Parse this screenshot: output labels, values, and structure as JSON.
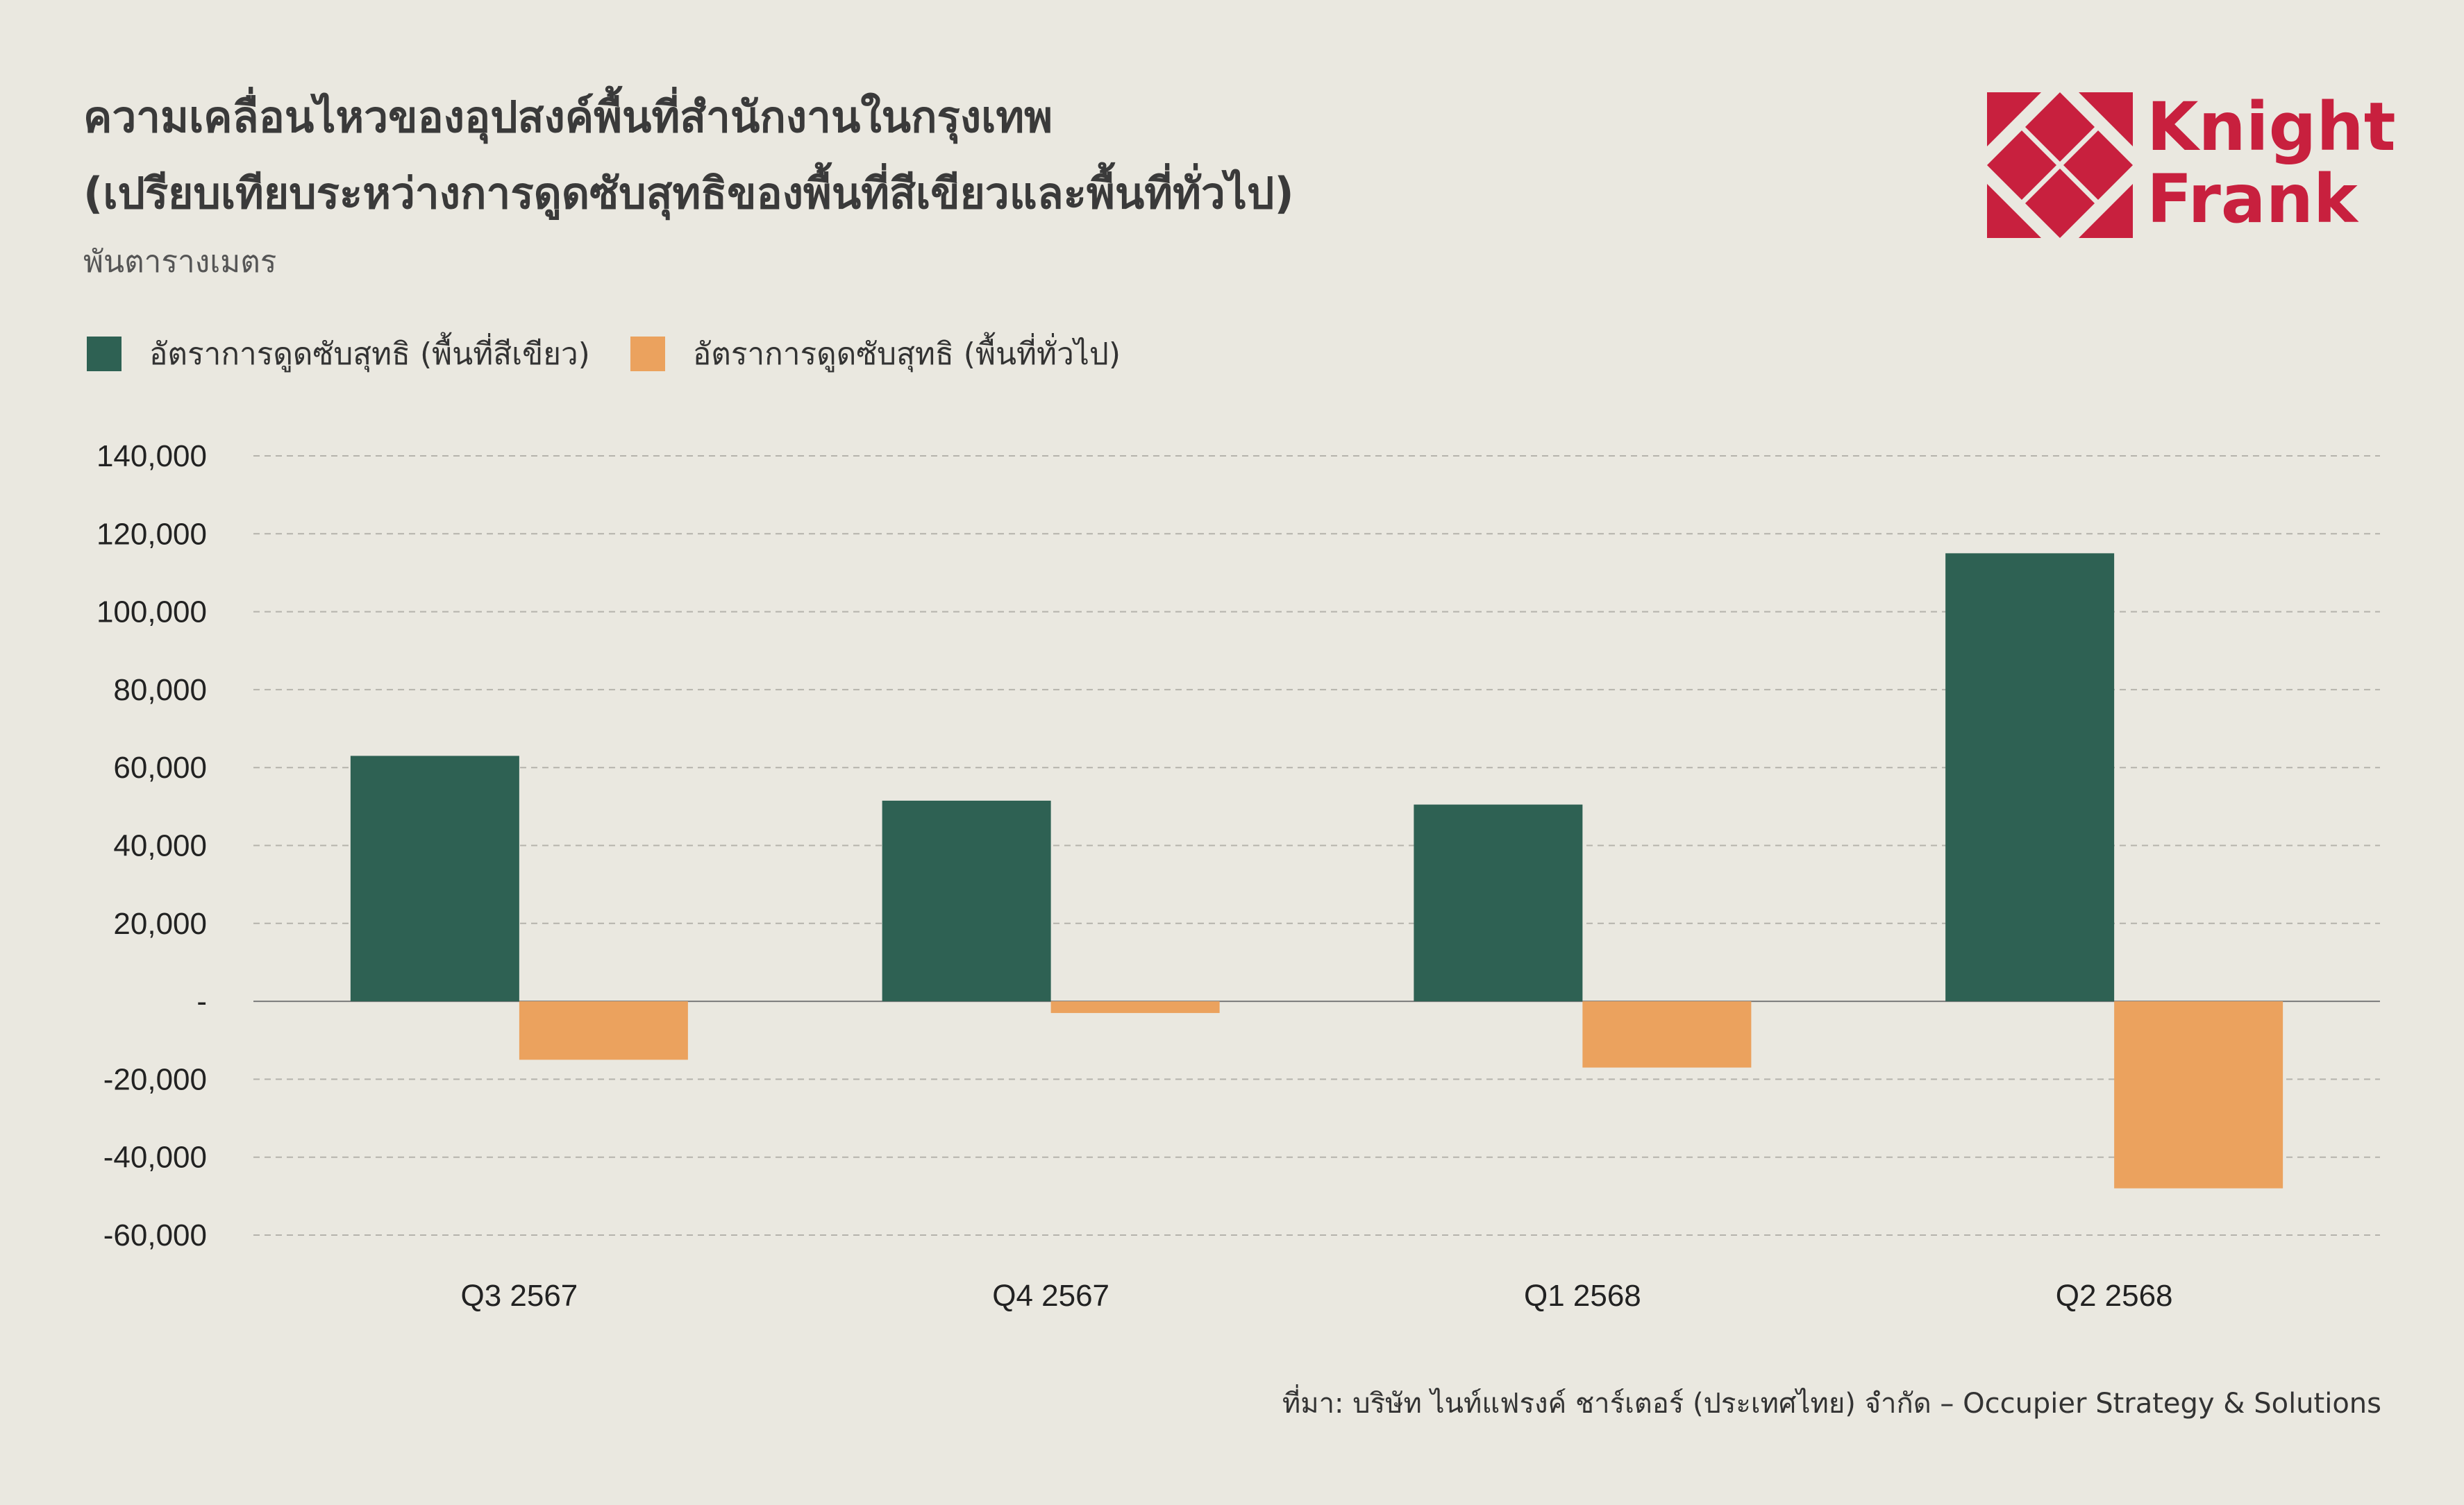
{
  "header": {
    "title_line1": "ความเคลื่อนไหวของอุปสงค์พื้นที่สำนักงานในกรุงเทพ",
    "title_line2": "(เปรียบเทียบระหว่างการดูดซับสุทธิของพื้นที่สีเขียวและพื้นที่ทั่วไป)",
    "unit": "พันตารางเมตร"
  },
  "logo": {
    "line1": "Knight",
    "line2": "Frank",
    "color": "#C8203E"
  },
  "colors": {
    "green": "#2E6153",
    "orange": "#EBA25E",
    "grid": "#B5B3AC",
    "background": "#EAE8E0"
  },
  "chart_data": {
    "type": "bar",
    "categories": [
      "Q3 2567",
      "Q4 2567",
      "Q1 2568",
      "Q2 2568"
    ],
    "series": [
      {
        "name": "อัตราการดูดซับสุทธิ (พื้นที่สีเขียว)",
        "color": "#2E6153",
        "values": [
          63000,
          51500,
          50500,
          115000
        ]
      },
      {
        "name": "อัตราการดูดซับสุทธิ (พื้นที่ทั่วไป)",
        "color": "#EBA25E",
        "values": [
          -15000,
          -3000,
          -17000,
          -48000
        ]
      }
    ],
    "ylim": [
      -60000,
      140000
    ],
    "yticks": [
      140000,
      120000,
      100000,
      80000,
      60000,
      40000,
      20000,
      0,
      -20000,
      -40000,
      -60000
    ],
    "ytick_labels": [
      "140,000",
      "120,000",
      "100,000",
      "80,000",
      "60,000",
      "40,000",
      "20,000",
      "-",
      "-20,000",
      "-40,000",
      "-60,000"
    ],
    "grid": true,
    "legend_position": "top-left"
  },
  "footer": {
    "source": "ที่มา: บริษัท ไนท์แฟรงค์ ชาร์เตอร์ (ประเทศไทย) จำกัด – Occupier Strategy & Solutions"
  }
}
